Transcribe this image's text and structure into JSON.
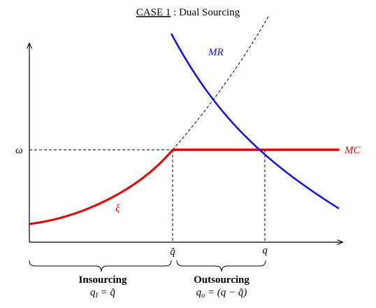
{
  "title": {
    "case": "CASE 1",
    "rest": ": Dual Sourcing"
  },
  "curves": {
    "mr": "MR",
    "mc": "MC",
    "xi": "ξ"
  },
  "axis": {
    "omega": "ω",
    "q_hat": "q̂",
    "q": "q"
  },
  "regions": [
    {
      "name": "Insourcing",
      "formula": {
        "base": "q",
        "sub": "I",
        "rest": " = q̂"
      }
    },
    {
      "name": "Outsourcing",
      "formula": {
        "base": "q",
        "sub": "o",
        "rest": " = (q − q̂)"
      }
    }
  ]
}
